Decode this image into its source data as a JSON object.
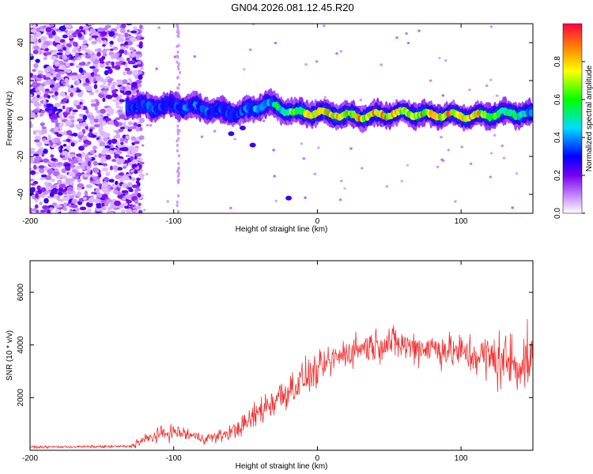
{
  "title": "GN04.2026.081.12.45.R20",
  "chart_data": [
    {
      "type": "heatmap",
      "name": "spectrogram",
      "xlabel": "Height of straight line (km)",
      "ylabel": "Frequency (Hz)",
      "xlim": [
        -200,
        150
      ],
      "ylim": [
        -50,
        50
      ],
      "xticks": [
        -200,
        -100,
        0,
        100
      ],
      "yticks": [
        -40,
        -20,
        0,
        20,
        40
      ],
      "colorbar": {
        "label": "Normalized spectral amplitude",
        "range": [
          0,
          1
        ],
        "ticks": [
          0.0,
          0.2,
          0.4,
          0.6,
          0.8
        ],
        "tick_labels": [
          "0.0",
          "0.2",
          "0.4",
          "0.6",
          "0.8"
        ],
        "colors": [
          "#ffffff",
          "#cc99ff",
          "#7700ee",
          "#0000ff",
          "#00ddff",
          "#00ff00",
          "#ffff00",
          "#ff8800",
          "#ff0044"
        ]
      },
      "signal_track": {
        "x": [
          -130,
          -115,
          -100,
          -85,
          -70,
          -55,
          -45,
          -35,
          -25,
          -15,
          0,
          15,
          30,
          45,
          60,
          75,
          90,
          105,
          120,
          135,
          150
        ],
        "freq": [
          7,
          6,
          7,
          6,
          4,
          3,
          5,
          8,
          5,
          3,
          3,
          2,
          1,
          2,
          3,
          2,
          2,
          1,
          2,
          3,
          2
        ],
        "amplitude": [
          0.35,
          0.4,
          0.38,
          0.4,
          0.36,
          0.35,
          0.45,
          0.5,
          0.6,
          0.75,
          0.85,
          0.9,
          0.92,
          0.9,
          0.85,
          0.9,
          0.92,
          0.88,
          0.85,
          0.6,
          0.5
        ]
      },
      "noise_region": {
        "x_from": -200,
        "x_to": -125
      }
    },
    {
      "type": "line",
      "name": "snr",
      "xlabel": "Height of straight line (km)",
      "ylabel": "SNR (10 * v/v)",
      "xlim": [
        -200,
        150
      ],
      "ylim": [
        0,
        7200
      ],
      "xticks": [
        -200,
        -100,
        0,
        100
      ],
      "yticks": [
        2000,
        4000,
        6000
      ],
      "color": "#ee3333",
      "envelope": {
        "x": [
          -200,
          -130,
          -125,
          -110,
          -100,
          -90,
          -80,
          -70,
          -60,
          -50,
          -40,
          -30,
          -20,
          -10,
          0,
          10,
          20,
          30,
          40,
          50,
          60,
          70,
          80,
          90,
          100,
          110,
          120,
          130,
          140,
          150
        ],
        "mean": [
          120,
          150,
          300,
          600,
          700,
          600,
          450,
          500,
          700,
          1000,
          1500,
          1900,
          2300,
          2700,
          3000,
          3400,
          3700,
          3900,
          4000,
          4100,
          4000,
          3900,
          3900,
          3800,
          3700,
          3600,
          3500,
          3400,
          3300,
          3500
        ],
        "spread": [
          60,
          80,
          300,
          400,
          450,
          400,
          300,
          350,
          450,
          600,
          900,
          1000,
          1100,
          1000,
          900,
          900,
          900,
          900,
          900,
          950,
          950,
          950,
          1000,
          1000,
          1100,
          1200,
          1500,
          1800,
          1800,
          1500
        ]
      }
    }
  ]
}
